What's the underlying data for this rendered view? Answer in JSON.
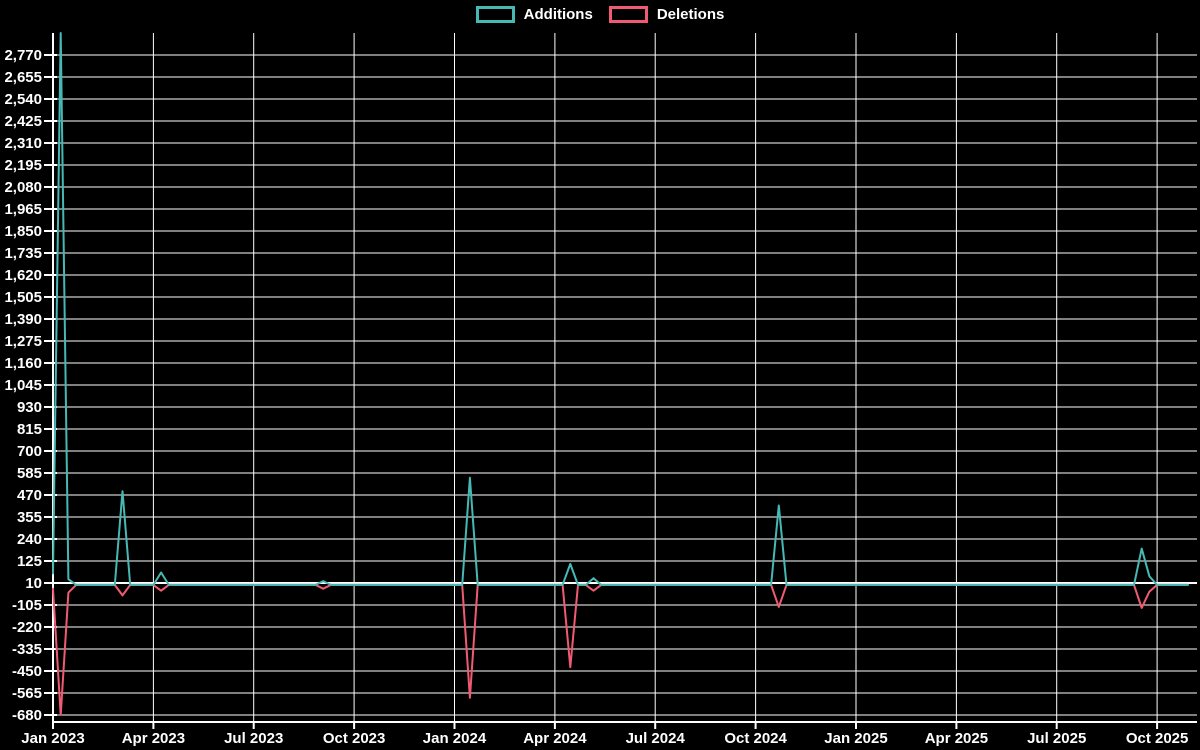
{
  "colors": {
    "background": "#000000",
    "grid": "#ffffff",
    "text": "#ffffff",
    "additions": "#46b9b4",
    "deletions": "#f05b73"
  },
  "legend": {
    "position": "top-center",
    "items": [
      {
        "label": "Additions",
        "color": "#46b9b4"
      },
      {
        "label": "Deletions",
        "color": "#f05b73"
      }
    ]
  },
  "chart_data": {
    "type": "line",
    "title": "",
    "grid": true,
    "x_axis": {
      "unit": "week",
      "weeks_per_tick": 13,
      "tick_labels": [
        "Jan 2023",
        "Apr 2023",
        "Jul 2023",
        "Oct 2023",
        "Jan 2024",
        "Apr 2024",
        "Jul 2024",
        "Oct 2024",
        "Jan 2025",
        "Apr 2025",
        "Jul 2025",
        "Oct 2025"
      ]
    },
    "y_axis": {
      "min": -680,
      "max": 2885,
      "step": 115,
      "baseline_value": 10,
      "tick_values": [
        2770,
        2655,
        2540,
        2425,
        2310,
        2195,
        2080,
        1965,
        1850,
        1735,
        1620,
        1505,
        1390,
        1275,
        1160,
        1045,
        930,
        815,
        700,
        585,
        470,
        355,
        240,
        125,
        10,
        -105,
        -220,
        -335,
        -450,
        -565,
        -680
      ],
      "tick_labels": [
        "2,770",
        "2,655",
        "2,540",
        "2,425",
        "2,310",
        "2,195",
        "2,080",
        "1,965",
        "1,850",
        "1,735",
        "1,620",
        "1,505",
        "1,390",
        "1,275",
        "1,160",
        "1,045",
        "930",
        "815",
        "700",
        "585",
        "470",
        "355",
        "240",
        "125",
        "10",
        "-105",
        "-220",
        "-335",
        "-450",
        "-565",
        "-680"
      ]
    },
    "weeks_total": 147,
    "x_start_label": "Jan 2023",
    "x_end_label": "Oct 2025",
    "series": [
      {
        "name": "Additions",
        "color": "#46b9b4",
        "default_value": 0,
        "points": [
          [
            0,
            60
          ],
          [
            1,
            2885
          ],
          [
            2,
            30
          ],
          [
            9,
            490
          ],
          [
            14,
            65
          ],
          [
            35,
            20
          ],
          [
            54,
            560
          ],
          [
            67,
            110
          ],
          [
            70,
            35
          ],
          [
            94,
            415
          ],
          [
            141,
            190
          ],
          [
            142,
            45
          ]
        ]
      },
      {
        "name": "Deletions",
        "color": "#f05b73",
        "default_value": 0,
        "points": [
          [
            0,
            -20
          ],
          [
            1,
            -680
          ],
          [
            2,
            -40
          ],
          [
            9,
            -55
          ],
          [
            14,
            -30
          ],
          [
            35,
            -20
          ],
          [
            54,
            -590
          ],
          [
            67,
            -430
          ],
          [
            70,
            -30
          ],
          [
            94,
            -115
          ],
          [
            141,
            -120
          ],
          [
            142,
            -35
          ]
        ]
      }
    ]
  }
}
